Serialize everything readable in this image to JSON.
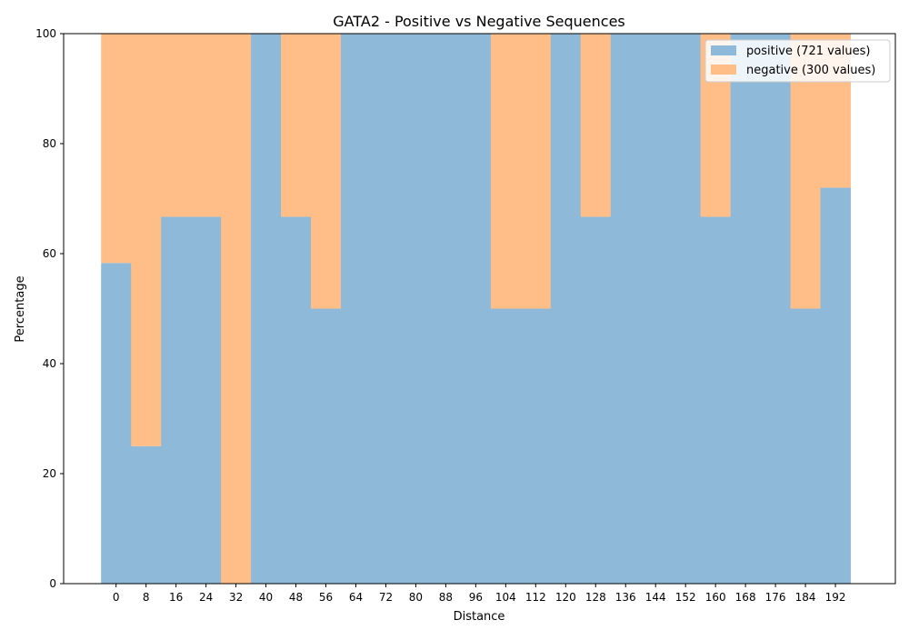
{
  "chart_data": {
    "type": "bar",
    "stacked": true,
    "title": "GATA2 - Positive vs Negative Sequences",
    "xlabel": "Distance",
    "ylabel": "Percentage",
    "ylim": [
      0,
      100
    ],
    "xlim": [
      -14,
      208
    ],
    "bin_width": 8,
    "x": [
      0,
      8,
      16,
      24,
      32,
      40,
      48,
      56,
      64,
      72,
      80,
      88,
      96,
      104,
      112,
      120,
      128,
      136,
      144,
      152,
      160,
      168,
      176,
      184,
      192
    ],
    "xticks": [
      "0",
      "8",
      "16",
      "24",
      "32",
      "40",
      "48",
      "56",
      "64",
      "72",
      "80",
      "88",
      "96",
      "104",
      "112",
      "120",
      "128",
      "136",
      "144",
      "152",
      "160",
      "168",
      "176",
      "184",
      "192"
    ],
    "yticks": [
      "0",
      "20",
      "40",
      "60",
      "80",
      "100"
    ],
    "series": [
      {
        "name": "positive (721 values)",
        "color": "#8fb9d9",
        "values": [
          58.3,
          25,
          66.7,
          66.7,
          0,
          100,
          66.7,
          50,
          100,
          100,
          100,
          100,
          100,
          50,
          50,
          100,
          66.7,
          100,
          100,
          100,
          66.7,
          100,
          100,
          50,
          72
        ]
      },
      {
        "name": "negative (300 values)",
        "color": "#ffbe87",
        "values": [
          41.7,
          75,
          33.3,
          33.3,
          100,
          0,
          33.3,
          50,
          0,
          0,
          0,
          0,
          0,
          50,
          50,
          0,
          33.3,
          0,
          0,
          0,
          33.3,
          0,
          0,
          50,
          28
        ]
      }
    ],
    "grid": false,
    "legend": "top-right"
  }
}
